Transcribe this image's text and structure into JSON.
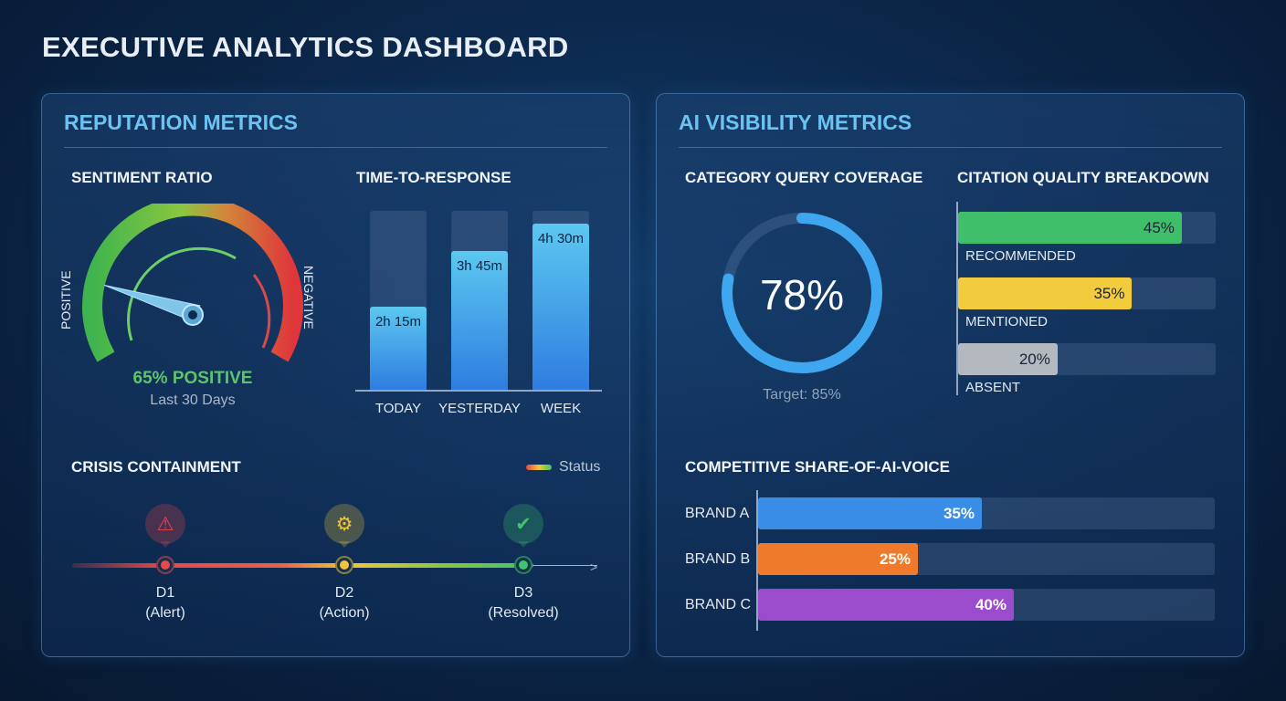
{
  "title": "EXECUTIVE ANALYTICS DASHBOARD",
  "reputation": {
    "title": "REPUTATION METRICS",
    "sentiment": {
      "title": "SENTIMENT RATIO",
      "left_label": "POSITIVE",
      "right_label": "NEGATIVE",
      "value_label": "65% POSITIVE",
      "value": 65,
      "period": "Last 30 Days"
    },
    "response": {
      "title": "TIME-TO-RESPONSE",
      "bars": [
        {
          "label": "TODAY",
          "value_label": "2h 15m",
          "hours": 2.25
        },
        {
          "label": "YESTERDAY",
          "value_label": "3h 45m",
          "hours": 3.75
        },
        {
          "label": "WEEK",
          "value_label": "4h 30m",
          "hours": 4.5
        }
      ]
    },
    "crisis": {
      "title": "CRISIS CONTAINMENT",
      "legend": "Status",
      "steps": [
        {
          "day": "D1",
          "state": "(Alert)",
          "icon": "alert-triangle-icon",
          "color": "#e8484a"
        },
        {
          "day": "D2",
          "state": "(Action)",
          "icon": "gear-icon",
          "color": "#f0c53a"
        },
        {
          "day": "D3",
          "state": "(Resolved)",
          "icon": "check-circle-icon",
          "color": "#3fc46a"
        }
      ]
    }
  },
  "ai": {
    "title": "AI VISIBILITY METRICS",
    "coverage": {
      "title": "CATEGORY QUERY COVERAGE",
      "value": 78,
      "value_label": "78%",
      "target": "Target: 85%"
    },
    "citation": {
      "title": "CITATION QUALITY BREAKDOWN",
      "items": [
        {
          "label": "RECOMMENDED",
          "value": 45,
          "value_label": "45%",
          "color": "#3fbf6a"
        },
        {
          "label": "MENTIONED",
          "value": 35,
          "value_label": "35%",
          "color": "#f2cc3c"
        },
        {
          "label": "ABSENT",
          "value": 20,
          "value_label": "20%",
          "color": "#b4b8bf"
        }
      ]
    },
    "share": {
      "title": "COMPETITIVE SHARE-OF-AI-VOICE",
      "items": [
        {
          "label": "BRAND A",
          "value": 35,
          "value_label": "35%",
          "color": "#3a8de6"
        },
        {
          "label": "BRAND B",
          "value": 25,
          "value_label": "25%",
          "color": "#f07a2c"
        },
        {
          "label": "BRAND C",
          "value": 40,
          "value_label": "40%",
          "color": "#9a4ccc"
        }
      ]
    }
  }
}
